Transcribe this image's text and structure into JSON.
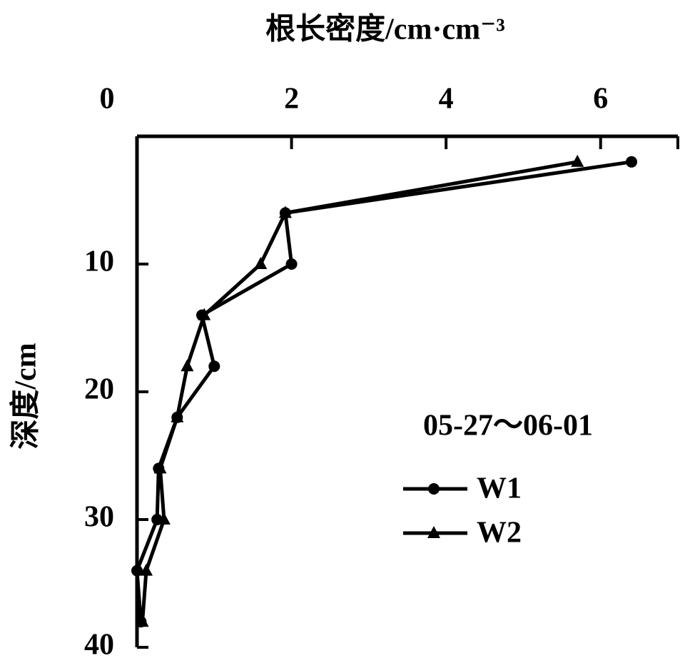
{
  "chart_data": {
    "type": "line",
    "title": "根长密度/cm·cm⁻³",
    "y_label": "深度/cm",
    "legend_title": "05-27～06-01",
    "y": [
      2,
      6,
      10,
      14,
      18,
      22,
      26,
      30,
      34,
      38
    ],
    "series": [
      {
        "name": "W1",
        "color": "#000000",
        "marker": "circle",
        "values": [
          6.4,
          1.92,
          2.0,
          0.84,
          1.0,
          0.52,
          0.28,
          0.26,
          0,
          0.05
        ]
      },
      {
        "name": "W2",
        "color": "#000000",
        "marker": "triangle",
        "values": [
          5.7,
          1.92,
          1.6,
          0.87,
          0.65,
          0.52,
          0.3,
          0.35,
          0.12,
          0.07
        ]
      }
    ],
    "xlim": [
      0,
      7
    ],
    "xticks": [
      0,
      2,
      4,
      6
    ],
    "ylim": [
      0,
      40
    ],
    "yticks": [
      10,
      20,
      30,
      40
    ],
    "y_inverted": true,
    "x_axis_position": "top",
    "grid": false
  }
}
